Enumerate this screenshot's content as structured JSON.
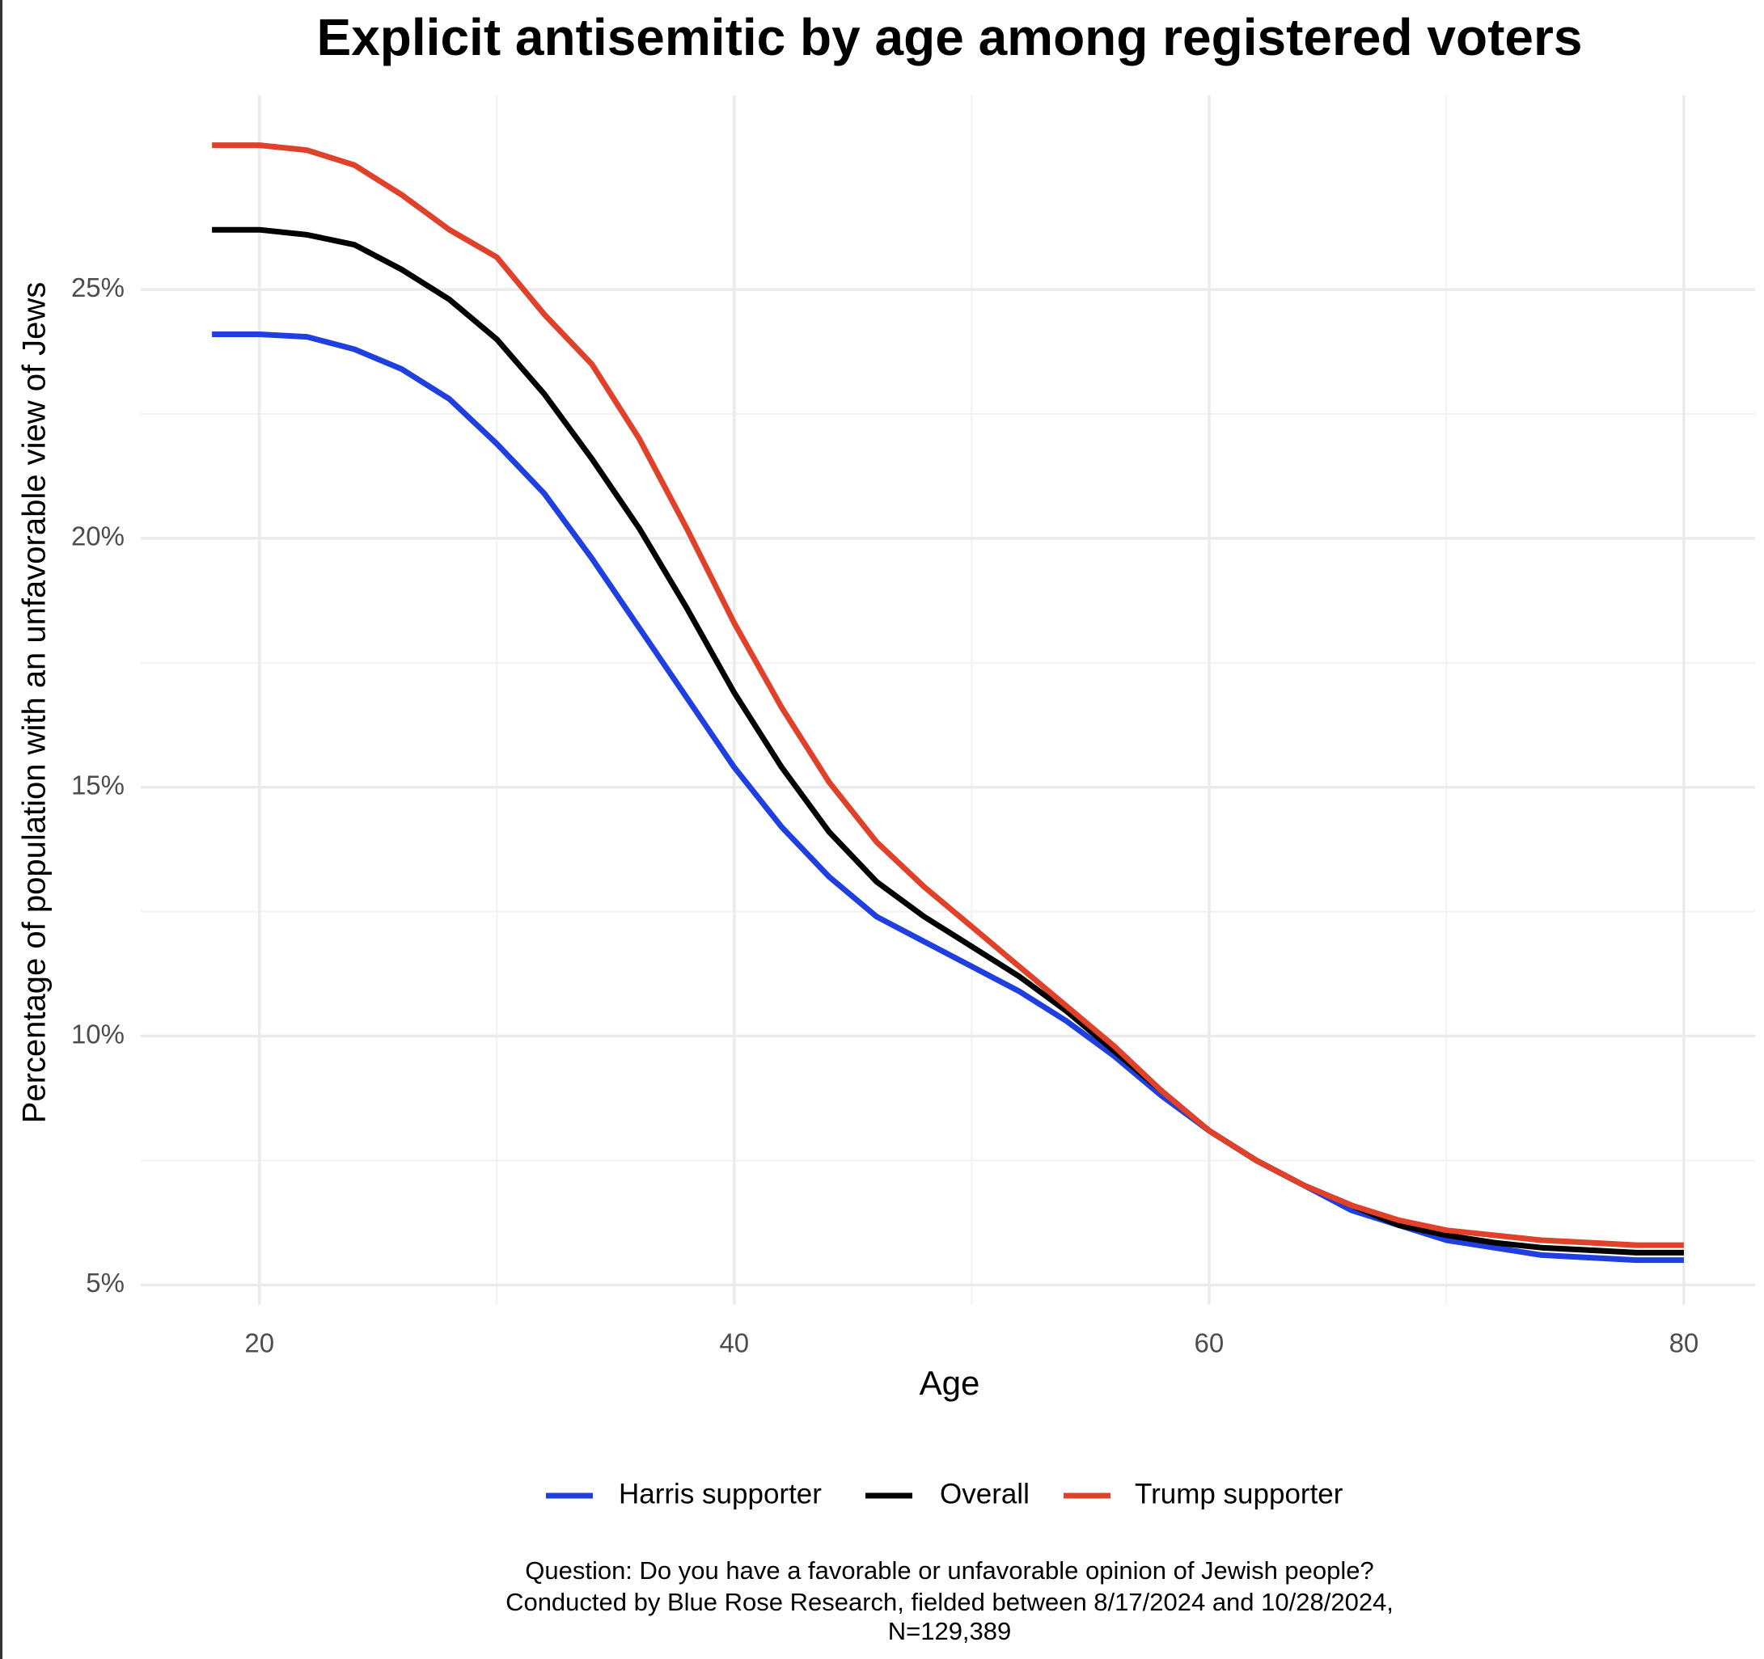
{
  "chart_data": {
    "type": "line",
    "title": "Explicit antisemitic by age among registered voters",
    "x_label": "Age",
    "y_label": "Percentage of population with an unfavorable view of Jews",
    "caption": [
      "Question: Do you have a favorable or unfavorable opinion of Jewish people?",
      "Conducted by Blue Rose Research, fielded between 8/17/2024 and 10/28/2024,",
      "N=129,389"
    ],
    "x": [
      18,
      20,
      22,
      24,
      26,
      28,
      30,
      32,
      34,
      36,
      38,
      40,
      42,
      44,
      46,
      48,
      50,
      52,
      54,
      56,
      58,
      60,
      62,
      64,
      66,
      68,
      70,
      72,
      74,
      76,
      78,
      80
    ],
    "series": [
      {
        "name": "Harris supporter",
        "color": "#1f3fe0",
        "values": [
          24.1,
          24.1,
          24.05,
          23.8,
          23.4,
          22.8,
          21.9,
          20.9,
          19.6,
          18.2,
          16.8,
          15.4,
          14.2,
          13.2,
          12.4,
          11.9,
          11.4,
          10.9,
          10.3,
          9.6,
          8.8,
          8.1,
          7.5,
          7.0,
          6.5,
          6.2,
          5.9,
          5.75,
          5.6,
          5.55,
          5.5,
          5.5
        ]
      },
      {
        "name": "Overall",
        "color": "#000000",
        "values": [
          26.2,
          26.2,
          26.1,
          25.9,
          25.4,
          24.8,
          24.0,
          22.9,
          21.6,
          20.2,
          18.6,
          16.9,
          15.4,
          14.1,
          13.1,
          12.4,
          11.8,
          11.2,
          10.5,
          9.7,
          8.9,
          8.1,
          7.5,
          7.0,
          6.6,
          6.2,
          6.0,
          5.85,
          5.75,
          5.7,
          5.65,
          5.65
        ]
      },
      {
        "name": "Trump supporter",
        "color": "#e0412b",
        "values": [
          27.9,
          27.9,
          27.8,
          27.5,
          26.9,
          26.2,
          25.65,
          24.5,
          23.5,
          22.0,
          20.2,
          18.3,
          16.6,
          15.1,
          13.9,
          13.0,
          12.2,
          11.4,
          10.6,
          9.8,
          8.9,
          8.1,
          7.5,
          7.0,
          6.6,
          6.3,
          6.1,
          6.0,
          5.9,
          5.85,
          5.8,
          5.8
        ]
      }
    ],
    "xlim": [
      15,
      83
    ],
    "xticks": [
      20,
      40,
      60,
      80
    ],
    "ylim": [
      4.6,
      28.9
    ],
    "yticks": [
      {
        "value": 5,
        "label": "5%"
      },
      {
        "value": 10,
        "label": "10%"
      },
      {
        "value": 15,
        "label": "15%"
      },
      {
        "value": 20,
        "label": "20%"
      },
      {
        "value": 25,
        "label": "25%"
      }
    ],
    "grid": true,
    "legend": "bottom"
  }
}
